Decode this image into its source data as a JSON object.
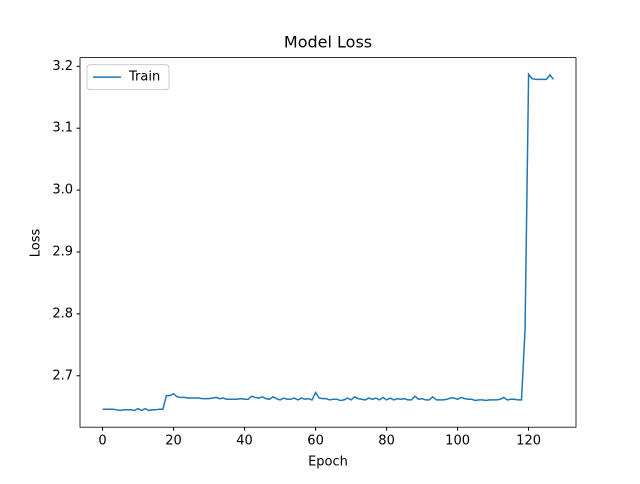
{
  "chart_data": {
    "type": "line",
    "title": "Model Loss",
    "x_label": "Epoch",
    "y_label": "Loss",
    "x": [
      0,
      1,
      2,
      3,
      4,
      5,
      6,
      7,
      8,
      9,
      10,
      11,
      12,
      13,
      14,
      15,
      16,
      17,
      18,
      19,
      20,
      21,
      22,
      23,
      24,
      25,
      26,
      27,
      28,
      29,
      30,
      31,
      32,
      33,
      34,
      35,
      36,
      37,
      38,
      39,
      40,
      41,
      42,
      43,
      44,
      45,
      46,
      47,
      48,
      49,
      50,
      51,
      52,
      53,
      54,
      55,
      56,
      57,
      58,
      59,
      60,
      61,
      62,
      63,
      64,
      65,
      66,
      67,
      68,
      69,
      70,
      71,
      72,
      73,
      74,
      75,
      76,
      77,
      78,
      79,
      80,
      81,
      82,
      83,
      84,
      85,
      86,
      87,
      88,
      89,
      90,
      91,
      92,
      93,
      94,
      95,
      96,
      97,
      98,
      99,
      100,
      101,
      102,
      103,
      104,
      105,
      106,
      107,
      108,
      109,
      110,
      111,
      112,
      113,
      114,
      115,
      116,
      117,
      118,
      119,
      120,
      121,
      122,
      123,
      124,
      125,
      126,
      127
    ],
    "series": [
      {
        "name": "Train",
        "color": "#1f77b4",
        "values": [
          2.646,
          2.646,
          2.646,
          2.646,
          2.645,
          2.644,
          2.645,
          2.645,
          2.645,
          2.644,
          2.647,
          2.644,
          2.647,
          2.644,
          2.645,
          2.645,
          2.646,
          2.646,
          2.668,
          2.668,
          2.671,
          2.666,
          2.665,
          2.665,
          2.664,
          2.664,
          2.664,
          2.664,
          2.663,
          2.663,
          2.663,
          2.664,
          2.665,
          2.663,
          2.664,
          2.662,
          2.662,
          2.662,
          2.662,
          2.663,
          2.662,
          2.662,
          2.667,
          2.665,
          2.664,
          2.666,
          2.663,
          2.662,
          2.666,
          2.663,
          2.661,
          2.664,
          2.662,
          2.662,
          2.664,
          2.661,
          2.664,
          2.662,
          2.663,
          2.661,
          2.673,
          2.664,
          2.663,
          2.663,
          2.661,
          2.662,
          2.662,
          2.66,
          2.661,
          2.664,
          2.661,
          2.666,
          2.663,
          2.662,
          2.661,
          2.664,
          2.662,
          2.664,
          2.661,
          2.665,
          2.661,
          2.664,
          2.661,
          2.663,
          2.662,
          2.663,
          2.661,
          2.661,
          2.667,
          2.662,
          2.663,
          2.661,
          2.661,
          2.666,
          2.661,
          2.661,
          2.661,
          2.662,
          2.664,
          2.664,
          2.662,
          2.665,
          2.663,
          2.662,
          2.662,
          2.66,
          2.661,
          2.661,
          2.66,
          2.661,
          2.661,
          2.661,
          2.662,
          2.665,
          2.661,
          2.662,
          2.662,
          2.661,
          2.661,
          2.775,
          3.187,
          3.18,
          3.179,
          3.179,
          3.179,
          3.179,
          3.186,
          3.179
        ]
      }
    ],
    "xlim": [
      -6.35,
      133.35
    ],
    "ylim": [
      2.6169,
      3.2141
    ],
    "xticks": [
      0,
      20,
      40,
      60,
      80,
      100,
      120
    ],
    "yticks": [
      2.7,
      2.8,
      2.9,
      {
        "value": 3,
        "label": "3.0"
      },
      3.1,
      3.2
    ],
    "legend": "upper left",
    "grid": false
  }
}
